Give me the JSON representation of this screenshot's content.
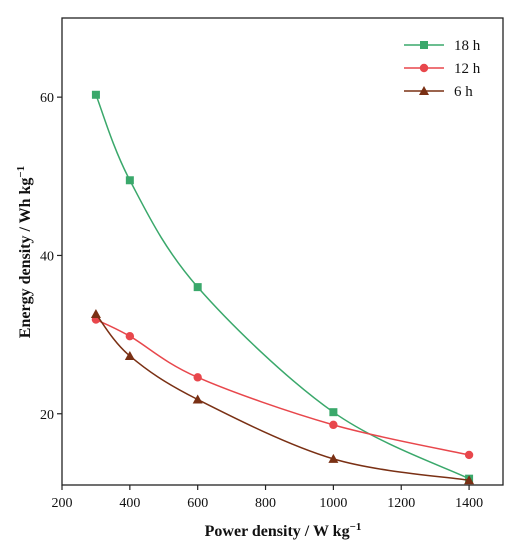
{
  "chart_data": {
    "type": "line",
    "xlabel": "Power density / W kg",
    "xlabel_sup": "−1",
    "ylabel": "Energy density / Wh kg",
    "ylabel_sup": "−1",
    "xlim": [
      200,
      1500
    ],
    "ylim": [
      11,
      70
    ],
    "x_ticks": [
      200,
      400,
      600,
      800,
      1000,
      1200,
      1400
    ],
    "y_ticks": [
      20,
      40,
      60
    ],
    "grid": false,
    "legend_position": "top-right",
    "series": [
      {
        "name": "18 h",
        "color": "#3aa86b",
        "marker": "square",
        "x": [
          300,
          400,
          600,
          1000,
          1400
        ],
        "y": [
          60.3,
          49.5,
          36.0,
          20.2,
          11.8
        ]
      },
      {
        "name": "12 h",
        "color": "#e8474c",
        "marker": "circle",
        "x": [
          300,
          400,
          600,
          1000,
          1400
        ],
        "y": [
          31.9,
          29.8,
          24.6,
          18.6,
          14.8
        ]
      },
      {
        "name": "6 h",
        "color": "#7a3014",
        "marker": "triangle",
        "x": [
          300,
          400,
          600,
          1000,
          1400
        ],
        "y": [
          32.6,
          27.3,
          21.8,
          14.3,
          11.6
        ]
      }
    ]
  }
}
